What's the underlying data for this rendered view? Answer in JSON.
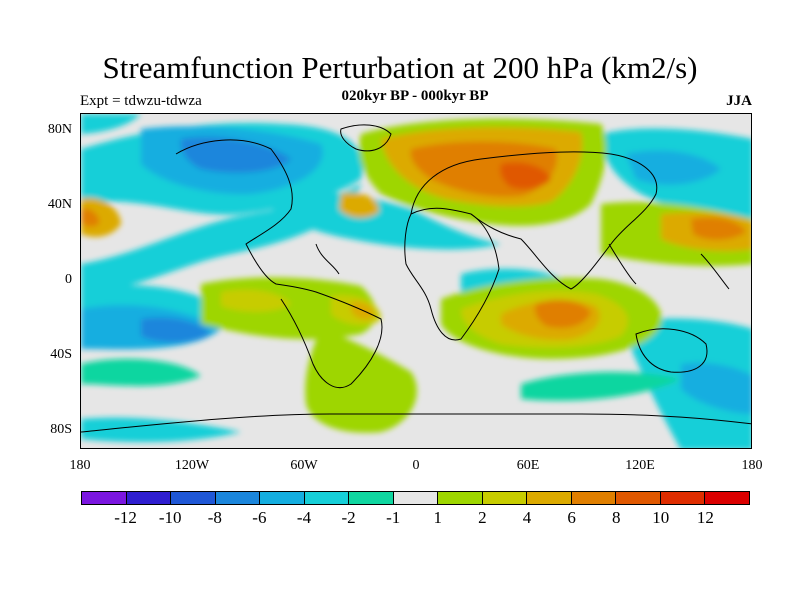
{
  "title": "Streamfunction Perturbation at 200 hPa (km2/s)",
  "subtitle_left": "Expt = tdwzu-tdwza",
  "subtitle_center": "020kyr BP - 000kyr BP",
  "subtitle_right": "JJA",
  "lat_ticks": [
    "80N",
    "40N",
    "0",
    "40S",
    "80S"
  ],
  "lon_ticks": [
    "180",
    "120W",
    "60W",
    "0",
    "60E",
    "120E",
    "180"
  ],
  "colorbar": {
    "labels": [
      "-12",
      "-10",
      "-8",
      "-6",
      "-4",
      "-2",
      "-1",
      "1",
      "2",
      "4",
      "6",
      "8",
      "10",
      "12"
    ],
    "colors": [
      "#7b16e0",
      "#2f1ed0",
      "#1f57d6",
      "#1b86dc",
      "#14aee0",
      "#16cfd8",
      "#0fd6a0",
      "#e6e6e6",
      "#9ed600",
      "#c7cc00",
      "#dcaa00",
      "#e07f00",
      "#e05800",
      "#df2d00",
      "#db0000"
    ]
  }
}
